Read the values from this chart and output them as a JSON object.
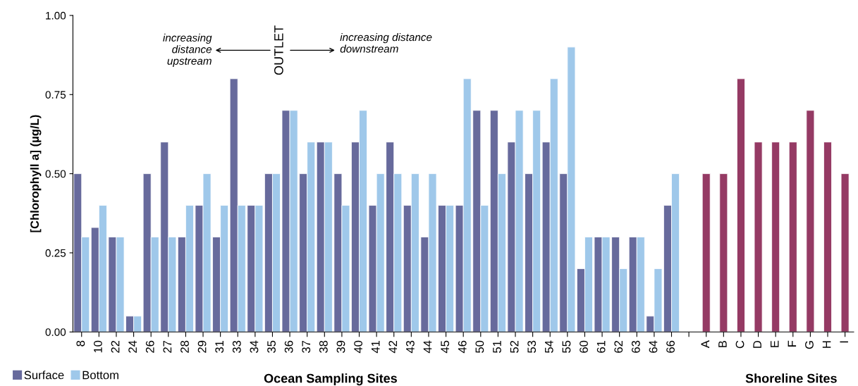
{
  "chart_data": {
    "type": "bar",
    "ylabel": "[Chlorophyll a] (µg/L)",
    "categories": [
      "8",
      "10",
      "22",
      "24",
      "26",
      "27",
      "28",
      "29",
      "31",
      "33",
      "34",
      "35",
      "36",
      "37",
      "38",
      "39",
      "40",
      "41",
      "42",
      "43",
      "44",
      "45",
      "46",
      "50",
      "51",
      "52",
      "53",
      "54",
      "55",
      "60",
      "61",
      "62",
      "63",
      "64",
      "66",
      null,
      "A",
      "B",
      "C",
      "D",
      "E",
      "F",
      "G",
      "H",
      "I"
    ],
    "series": [
      {
        "name": "Surface",
        "color": "#676a9c",
        "values": [
          0.5,
          0.33,
          0.3,
          0.05,
          0.5,
          0.6,
          0.3,
          0.4,
          0.3,
          0.8,
          0.4,
          0.5,
          0.7,
          0.5,
          0.6,
          0.5,
          0.6,
          0.4,
          0.6,
          0.4,
          0.3,
          0.4,
          0.4,
          0.7,
          0.7,
          0.6,
          0.5,
          0.6,
          0.5,
          0.2,
          0.3,
          0.3,
          0.3,
          0.05,
          0.4,
          null,
          null,
          null,
          null,
          null,
          null,
          null,
          null,
          null,
          null
        ]
      },
      {
        "name": "Bottom",
        "color": "#9fc8ea",
        "values": [
          0.3,
          0.4,
          0.3,
          0.05,
          0.3,
          0.3,
          0.4,
          0.5,
          0.4,
          0.4,
          0.4,
          0.5,
          0.7,
          0.6,
          0.6,
          0.4,
          0.7,
          0.5,
          0.5,
          0.5,
          0.5,
          0.4,
          0.8,
          0.4,
          0.5,
          0.7,
          0.7,
          0.8,
          0.9,
          0.3,
          0.3,
          0.2,
          0.3,
          0.2,
          0.5,
          null,
          null,
          null,
          null,
          null,
          null,
          null,
          null,
          null,
          null
        ]
      },
      {
        "color": "#953a64",
        "values": [
          null,
          null,
          null,
          null,
          null,
          null,
          null,
          null,
          null,
          null,
          null,
          null,
          null,
          null,
          null,
          null,
          null,
          null,
          null,
          null,
          null,
          null,
          null,
          null,
          null,
          null,
          null,
          null,
          null,
          null,
          null,
          null,
          null,
          null,
          null,
          null,
          0.5,
          0.5,
          0.8,
          0.6,
          0.6,
          0.6,
          0.7,
          0.6,
          0.5
        ]
      }
    ],
    "ylim": [
      0,
      1
    ],
    "yticks": [
      {
        "value": 0,
        "label": "0.00"
      },
      {
        "value": 0.25,
        "label": "0.25"
      },
      {
        "value": 0.5,
        "label": "0.50"
      },
      {
        "value": 0.75,
        "label": "0.75"
      },
      {
        "value": 1,
        "label": "1.00"
      }
    ],
    "legend": "bottom left",
    "grid": false,
    "annotations": [
      "increasing\ndistance\nupstream",
      "OUTLET",
      "increasing distance\ndownstream",
      "Ocean Sampling Sites",
      "Shoreline Sites"
    ]
  }
}
